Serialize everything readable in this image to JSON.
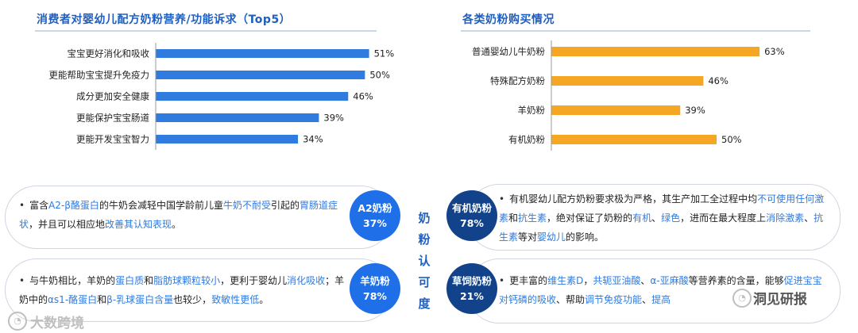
{
  "chart_data": [
    {
      "type": "bar",
      "orientation": "horizontal",
      "title": "消费者对婴幼儿配方奶粉营养/功能诉求（Top5）",
      "categories": [
        "宝宝更好消化和吸收",
        "更能帮助宝宝提升免疫力",
        "成分更加安全健康",
        "更能保护宝宝肠道",
        "更能开发宝宝智力"
      ],
      "values": [
        51,
        50,
        46,
        39,
        34
      ],
      "value_labels": [
        "51%",
        "50%",
        "46%",
        "39%",
        "34%"
      ],
      "xlim": [
        0,
        60
      ],
      "grid": false,
      "bar_color": "#2f7be0"
    },
    {
      "type": "bar",
      "orientation": "horizontal",
      "title": "各类奶粉购买情况",
      "categories": [
        "普通婴幼儿牛奶粉",
        "特殊配方奶粉",
        "羊奶粉",
        "有机奶粉"
      ],
      "values": [
        63,
        46,
        39,
        50
      ],
      "value_labels": [
        "63%",
        "46%",
        "39%",
        "50%"
      ],
      "xlim": [
        0,
        75
      ],
      "grid": false,
      "bar_color": "#f5a623"
    }
  ],
  "center_title": [
    "奶",
    "粉",
    "认",
    "可",
    "度"
  ],
  "cards": {
    "a2": {
      "segments": [
        {
          "t": "富含",
          "h": false
        },
        {
          "t": "A2-β酪蛋白",
          "h": true
        },
        {
          "t": "的牛奶会减轻中国学龄前儿童",
          "h": false
        },
        {
          "t": "牛奶不耐受",
          "h": true
        },
        {
          "t": "引起的",
          "h": false
        },
        {
          "t": "胃肠道症状",
          "h": true
        },
        {
          "t": "，并且可以相应地",
          "h": false
        },
        {
          "t": "改善其认知表现",
          "h": true
        },
        {
          "t": "。",
          "h": false
        }
      ],
      "badge_name": "A2奶粉",
      "badge_value": "37%"
    },
    "goat": {
      "segments": [
        {
          "t": "与牛奶相比，羊奶的",
          "h": false
        },
        {
          "t": "蛋白质",
          "h": true
        },
        {
          "t": "和",
          "h": false
        },
        {
          "t": "脂肪球颗粒较小",
          "h": true
        },
        {
          "t": "，更利于婴幼儿",
          "h": false
        },
        {
          "t": "消化吸收",
          "h": true
        },
        {
          "t": "；羊奶中的",
          "h": false
        },
        {
          "t": "αs1-酪蛋白",
          "h": true
        },
        {
          "t": "和",
          "h": false
        },
        {
          "t": "β-乳球蛋白含量",
          "h": true
        },
        {
          "t": "也较少，",
          "h": false
        },
        {
          "t": "致敏性更低",
          "h": true
        },
        {
          "t": "。",
          "h": false
        }
      ],
      "badge_name": "羊奶粉",
      "badge_value": "78%"
    },
    "organic": {
      "segments": [
        {
          "t": "有机婴幼儿配方奶粉要求极为严格，其生产加工全过程中均",
          "h": false
        },
        {
          "t": "不可使用任何激素",
          "h": true
        },
        {
          "t": "和",
          "h": false
        },
        {
          "t": "抗生素",
          "h": true
        },
        {
          "t": "，绝对保证了奶粉的",
          "h": false
        },
        {
          "t": "有机",
          "h": true
        },
        {
          "t": "、",
          "h": false
        },
        {
          "t": "绿色",
          "h": true
        },
        {
          "t": "，进而在最大程度上",
          "h": false
        },
        {
          "t": "消除激素",
          "h": true
        },
        {
          "t": "、",
          "h": false
        },
        {
          "t": "抗生素",
          "h": true
        },
        {
          "t": "等对",
          "h": false
        },
        {
          "t": "婴幼儿",
          "h": true
        },
        {
          "t": "的影响。",
          "h": false
        }
      ],
      "badge_name": "有机奶粉",
      "badge_value": "78%"
    },
    "grassfed": {
      "segments": [
        {
          "t": "更丰富的",
          "h": false
        },
        {
          "t": "维生素D",
          "h": true
        },
        {
          "t": "，",
          "h": false
        },
        {
          "t": "共轭亚油酸",
          "h": true
        },
        {
          "t": "、",
          "h": false
        },
        {
          "t": "α-亚麻酸",
          "h": true
        },
        {
          "t": "等营养素的含量，能够",
          "h": false
        },
        {
          "t": "促进宝宝对钙磷的吸收",
          "h": true
        },
        {
          "t": "、帮助",
          "h": false
        },
        {
          "t": "调节免疫功能",
          "h": true
        },
        {
          "t": "、",
          "h": false
        },
        {
          "t": "提高",
          "h": true
        }
      ],
      "badge_name": "草饲奶粉",
      "badge_value": "21%"
    }
  },
  "watermarks": {
    "left": "大数跨境",
    "right": "洞见研报"
  }
}
